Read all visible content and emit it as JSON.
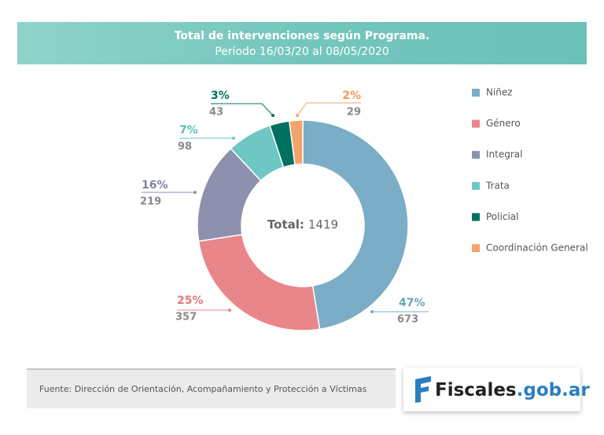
{
  "chart_data": {
    "type": "donut",
    "title": "Total de intervenciones según Programa.",
    "subtitle": "Período 16/03/20 al 08/05/2020",
    "categories": [
      "Niñez",
      "Género",
      "Integral",
      "Trata",
      "Policial",
      "Coordinación General"
    ],
    "values": [
      673,
      357,
      219,
      98,
      43,
      29
    ],
    "colors": [
      "#7badc7",
      "#e8868a",
      "#8d91ad",
      "#6ec7c2",
      "#00705f",
      "#f3a46b"
    ],
    "shares": {
      "values": [
        47,
        25,
        16,
        7,
        3,
        2
      ],
      "value_labels": [
        "47%",
        "25%",
        "16%",
        "7%",
        "3%",
        "2%"
      ]
    },
    "total_label": "Total:",
    "total": 1419,
    "source": "Fuente: Dirección de Orientación, Acompañamiento y Protección a Víctimas",
    "logo": {
      "name": "Fiscales",
      "domain": ".gob.ar"
    }
  }
}
